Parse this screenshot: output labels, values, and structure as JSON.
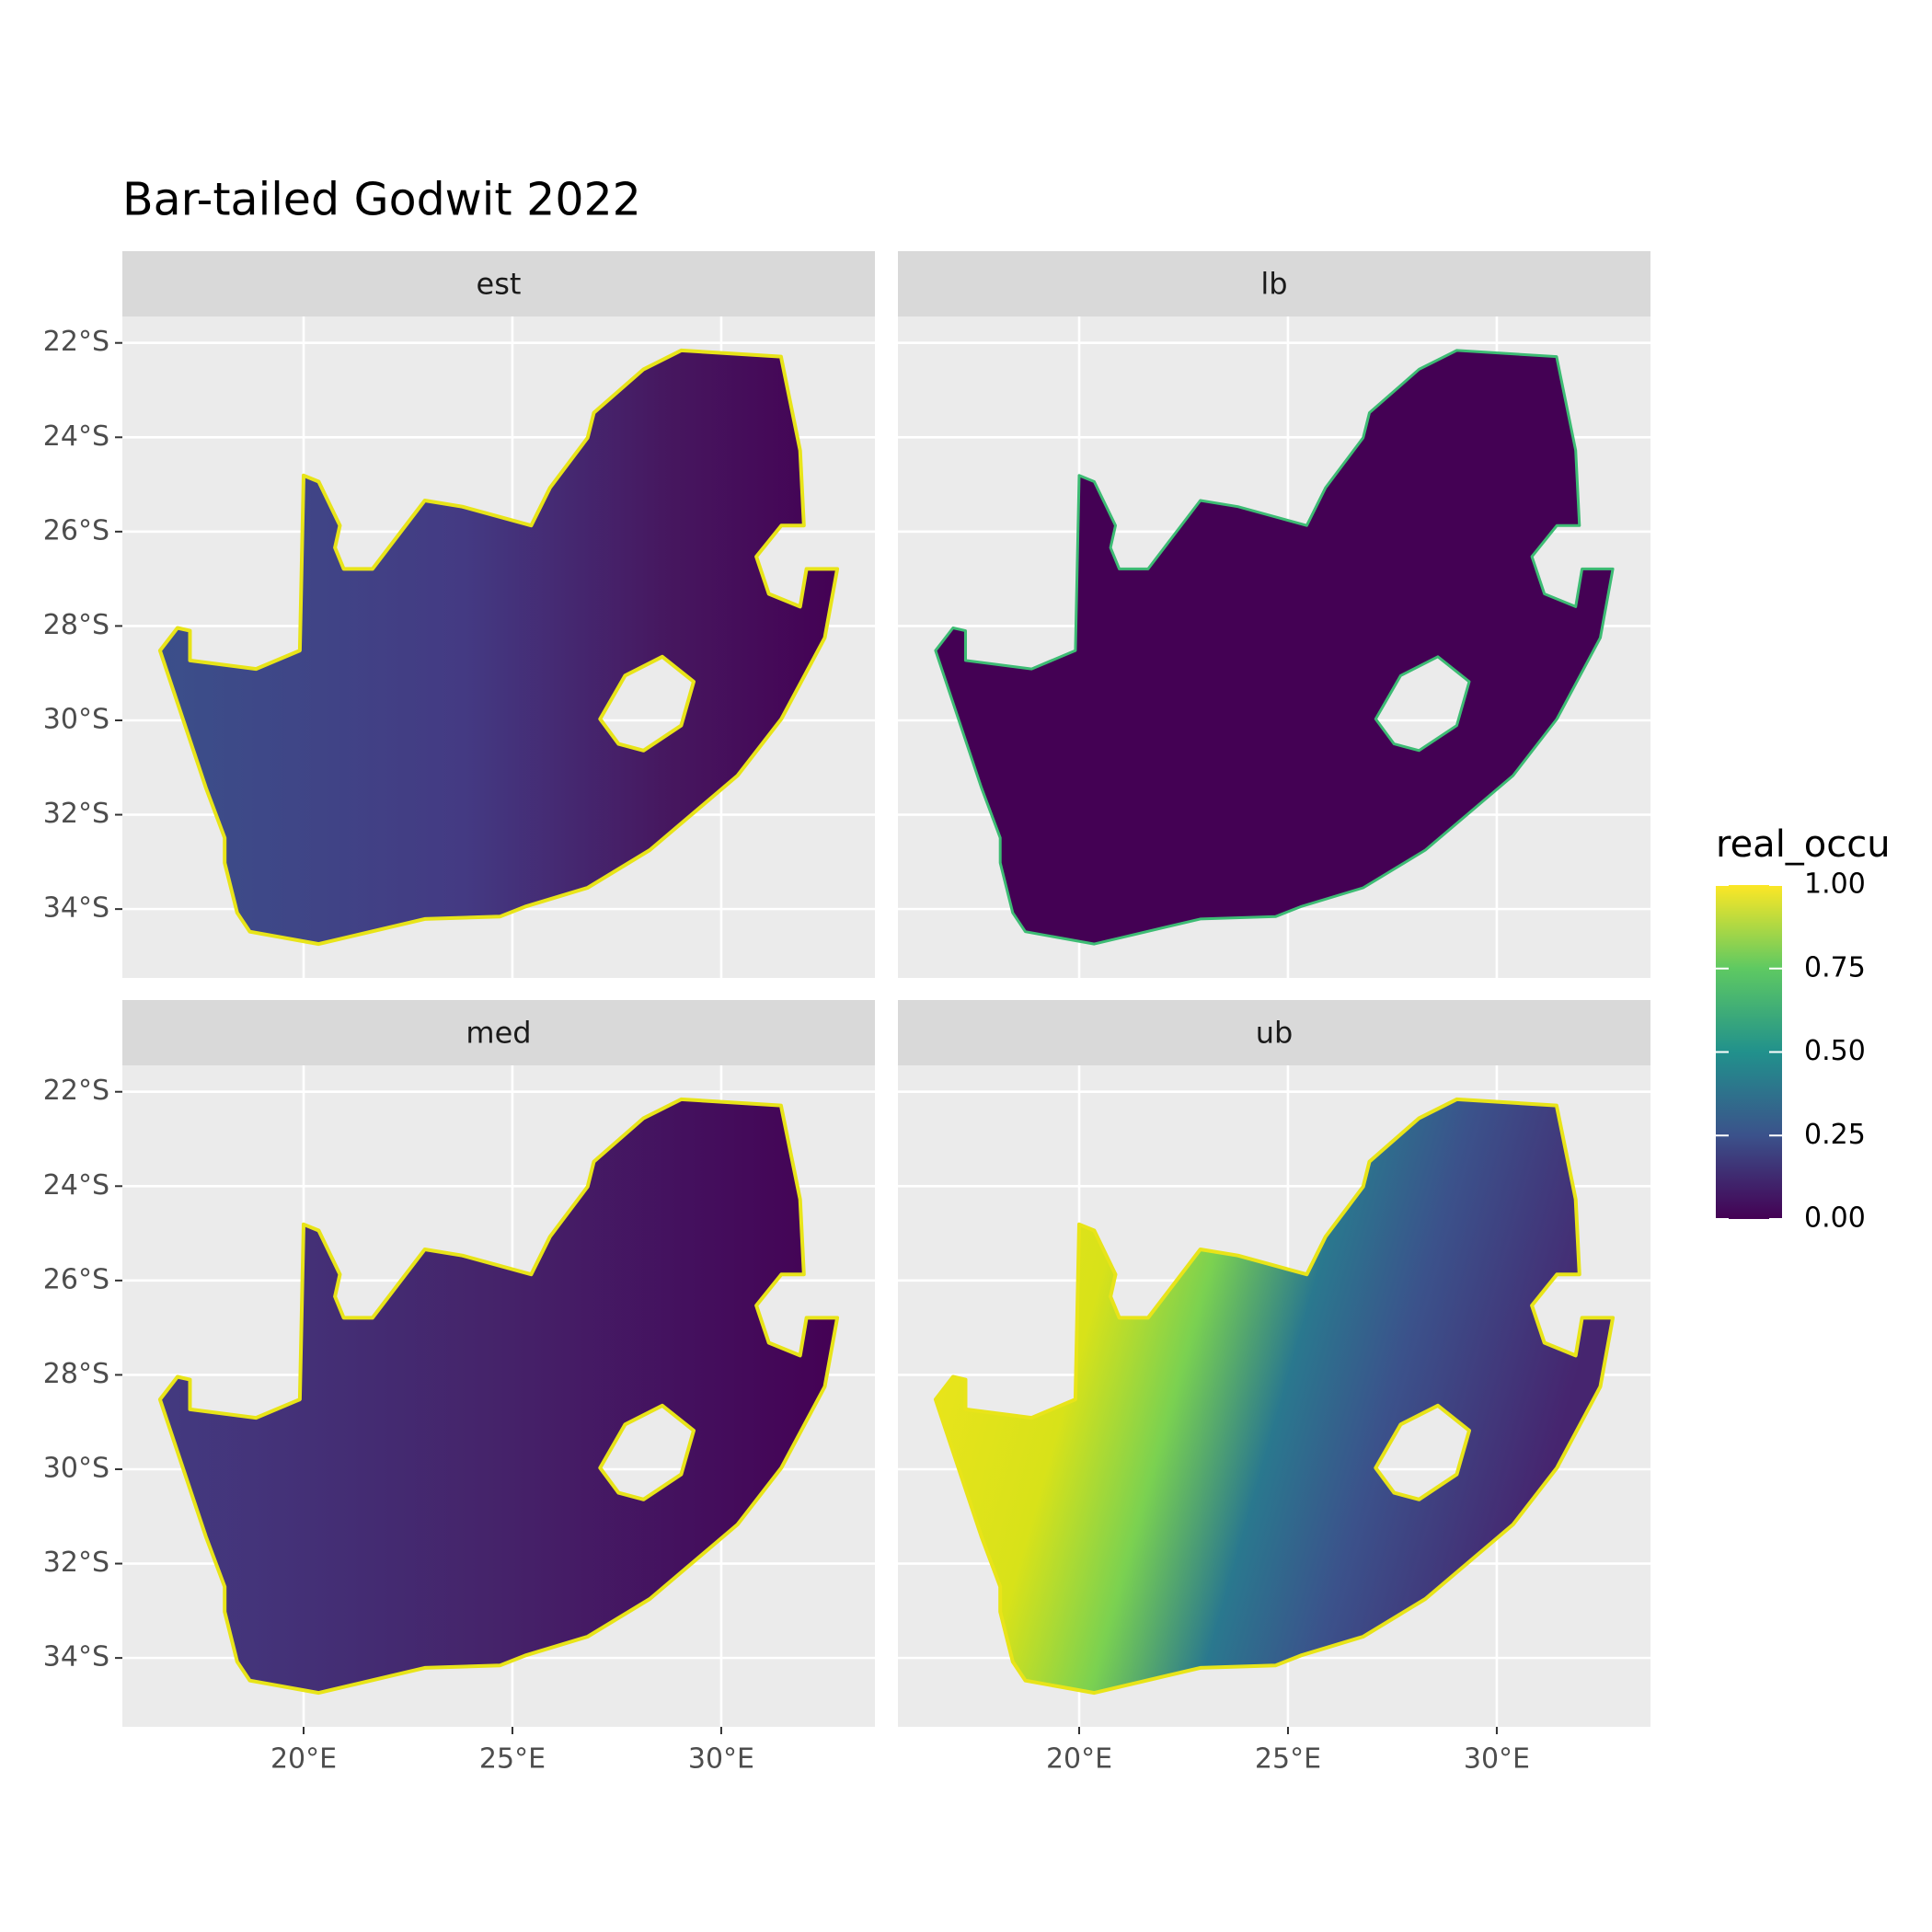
{
  "chart_data": {
    "type": "map",
    "title": "Bar-tailed Godwit 2022",
    "panels": [
      {
        "label": "est"
      },
      {
        "label": "lb"
      },
      {
        "label": "med"
      },
      {
        "label": "ub"
      }
    ],
    "xlim": [
      15.66,
      33.68
    ],
    "ylim": [
      -35.46,
      -21.44
    ],
    "xticks": [
      {
        "value": 20,
        "label": "20°E"
      },
      {
        "value": 25,
        "label": "25°E"
      },
      {
        "value": 30,
        "label": "30°E"
      }
    ],
    "yticks": [
      {
        "value": -22,
        "label": "22°S"
      },
      {
        "value": -24,
        "label": "24°S"
      },
      {
        "value": -26,
        "label": "26°S"
      },
      {
        "value": -28,
        "label": "28°S"
      },
      {
        "value": -30,
        "label": "30°S"
      },
      {
        "value": -32,
        "label": "32°S"
      },
      {
        "value": -34,
        "label": "34°S"
      }
    ],
    "grid": true,
    "legend": {
      "title": "real_occu",
      "lim": [
        0,
        1
      ],
      "ticks": [
        {
          "value": 0,
          "label": "0.00"
        },
        {
          "value": 0.25,
          "label": "0.25"
        },
        {
          "value": 0.5,
          "label": "0.50"
        },
        {
          "value": 0.75,
          "label": "0.75"
        },
        {
          "value": 1,
          "label": "1.00"
        }
      ],
      "colors": [
        "#440154",
        "#3b528b",
        "#21918c",
        "#5ec962",
        "#fde725"
      ]
    }
  }
}
